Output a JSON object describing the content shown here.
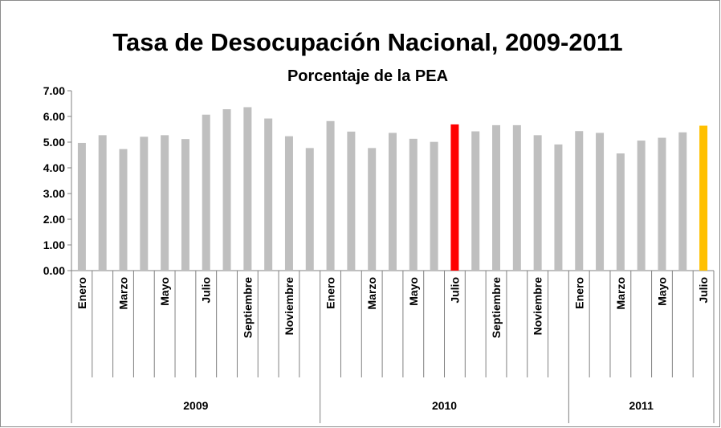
{
  "chart_data": {
    "type": "bar",
    "title": "Tasa de Desocupación Nacional, 2009-2011",
    "subtitle": "Porcentaje de la PEA",
    "categories": [
      "Enero",
      null,
      "Marzo",
      null,
      "Mayo",
      null,
      "Julio",
      null,
      "Septiembre",
      null,
      "Noviembre",
      null,
      "Enero",
      null,
      "Marzo",
      null,
      "Mayo",
      null,
      "Julio",
      null,
      "Septiembre",
      null,
      "Noviembre",
      null,
      "Enero",
      null,
      "Marzo",
      null,
      "Mayo",
      null,
      "Julio"
    ],
    "groups": [
      "2009",
      "2010",
      "2011"
    ],
    "group_sizes": [
      12,
      12,
      7
    ],
    "values": [
      4.97,
      5.27,
      4.73,
      5.21,
      5.27,
      5.12,
      6.07,
      6.28,
      6.36,
      5.92,
      5.23,
      4.77,
      5.82,
      5.41,
      4.77,
      5.36,
      5.13,
      5.01,
      5.69,
      5.42,
      5.66,
      5.66,
      5.27,
      4.91,
      5.43,
      5.36,
      4.56,
      5.06,
      5.17,
      5.38,
      5.64
    ],
    "colors": [
      "#bfbfbf",
      "#bfbfbf",
      "#bfbfbf",
      "#bfbfbf",
      "#bfbfbf",
      "#bfbfbf",
      "#bfbfbf",
      "#bfbfbf",
      "#bfbfbf",
      "#bfbfbf",
      "#bfbfbf",
      "#bfbfbf",
      "#bfbfbf",
      "#bfbfbf",
      "#bfbfbf",
      "#bfbfbf",
      "#bfbfbf",
      "#bfbfbf",
      "#ff0000",
      "#bfbfbf",
      "#bfbfbf",
      "#bfbfbf",
      "#bfbfbf",
      "#bfbfbf",
      "#bfbfbf",
      "#bfbfbf",
      "#bfbfbf",
      "#bfbfbf",
      "#bfbfbf",
      "#bfbfbf",
      "#ffc000"
    ],
    "ylim": [
      0,
      7
    ],
    "yticks": [
      {
        "value": 0,
        "label": "0.00"
      },
      {
        "value": 1,
        "label": "1.00"
      },
      {
        "value": 2,
        "label": "2.00"
      },
      {
        "value": 3,
        "label": "3.00"
      },
      {
        "value": 4,
        "label": "4.00"
      },
      {
        "value": 5,
        "label": "5.00"
      },
      {
        "value": 6,
        "label": "6.00"
      },
      {
        "value": 7,
        "label": "7.00"
      }
    ],
    "grid": false
  }
}
